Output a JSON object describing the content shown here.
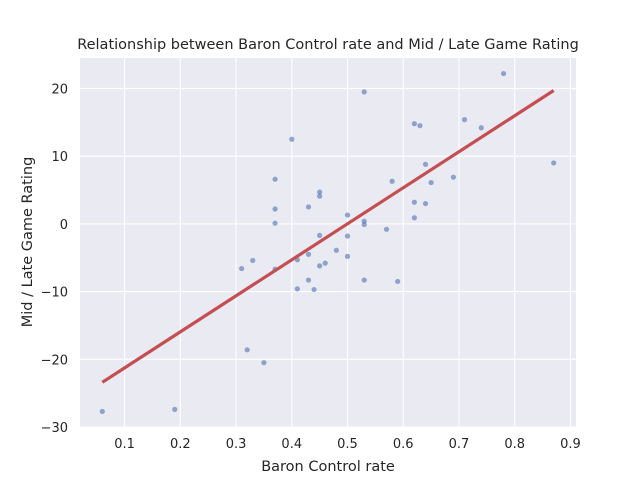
{
  "chart_data": {
    "type": "scatter",
    "title": "Relationship between Baron Control rate and Mid / Late Game Rating",
    "xlabel": "Baron Control rate",
    "ylabel": "Mid / Late Game Rating",
    "xlim": [
      0.02,
      0.91
    ],
    "ylim": [
      -30,
      24.5
    ],
    "x_ticks": [
      "0.1",
      "0.2",
      "0.3",
      "0.4",
      "0.5",
      "0.6",
      "0.7",
      "0.8",
      "0.9"
    ],
    "y_ticks": [
      "−30",
      "−20",
      "−10",
      "0",
      "10",
      "20"
    ],
    "grid": true,
    "point_color": "#4c72b0",
    "line_color": "#c44e52",
    "background_color": "#eaeaf2",
    "series": [
      {
        "type": "scatter",
        "points": [
          [
            0.06,
            -27.7
          ],
          [
            0.19,
            -27.4
          ],
          [
            0.31,
            -6.6
          ],
          [
            0.32,
            -18.6
          ],
          [
            0.33,
            -5.4
          ],
          [
            0.35,
            -20.5
          ],
          [
            0.37,
            -6.7
          ],
          [
            0.37,
            0.1
          ],
          [
            0.37,
            2.2
          ],
          [
            0.37,
            6.6
          ],
          [
            0.4,
            12.5
          ],
          [
            0.41,
            -5.3
          ],
          [
            0.41,
            -9.6
          ],
          [
            0.43,
            -8.3
          ],
          [
            0.43,
            -4.5
          ],
          [
            0.43,
            2.5
          ],
          [
            0.44,
            -9.7
          ],
          [
            0.45,
            -6.2
          ],
          [
            0.45,
            -1.7
          ],
          [
            0.45,
            4.1
          ],
          [
            0.45,
            4.7
          ],
          [
            0.46,
            -5.8
          ],
          [
            0.48,
            -3.9
          ],
          [
            0.5,
            -4.8
          ],
          [
            0.5,
            -1.8
          ],
          [
            0.5,
            1.3
          ],
          [
            0.53,
            -8.3
          ],
          [
            0.53,
            -0.1
          ],
          [
            0.53,
            0.4
          ],
          [
            0.53,
            19.5
          ],
          [
            0.57,
            -0.8
          ],
          [
            0.58,
            6.3
          ],
          [
            0.59,
            -8.5
          ],
          [
            0.62,
            0.9
          ],
          [
            0.62,
            3.2
          ],
          [
            0.62,
            14.8
          ],
          [
            0.63,
            14.5
          ],
          [
            0.64,
            3.0
          ],
          [
            0.64,
            8.8
          ],
          [
            0.65,
            6.1
          ],
          [
            0.69,
            6.9
          ],
          [
            0.71,
            15.4
          ],
          [
            0.74,
            14.2
          ],
          [
            0.78,
            22.2
          ],
          [
            0.87,
            9.0
          ]
        ]
      },
      {
        "type": "line",
        "points": [
          [
            0.06,
            -23.4
          ],
          [
            0.87,
            19.7
          ]
        ]
      }
    ]
  }
}
